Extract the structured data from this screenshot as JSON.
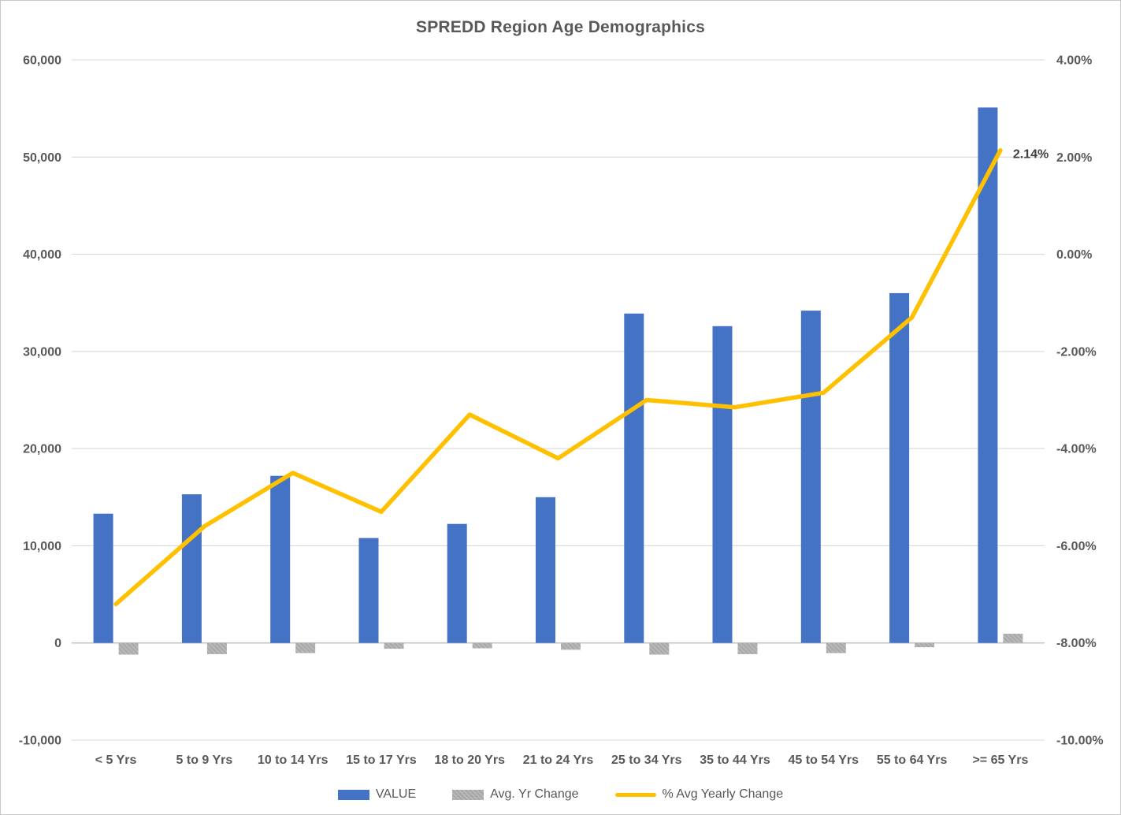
{
  "page": {
    "background": "#ffffff",
    "border_color": "#c8c8c8"
  },
  "chart_data": {
    "type": "combo-bar-line",
    "title": "SPREDD Region Age Demographics",
    "categories": [
      "< 5 Yrs",
      "5 to 9 Yrs",
      "10 to 14 Yrs",
      "15 to 17 Yrs",
      "18 to 20 Yrs",
      "21 to 24 Yrs",
      "25 to 34 Yrs",
      "35 to 44 Yrs",
      "45 to 54 Yrs",
      "55 to 64 Yrs",
      ">= 65 Yrs"
    ],
    "series": [
      {
        "name": "VALUE",
        "type": "bar",
        "axis": "left",
        "color": "#4472C4",
        "values": [
          13300,
          15300,
          17200,
          10800,
          12250,
          15000,
          33900,
          32600,
          34200,
          36000,
          55100
        ]
      },
      {
        "name": "Avg. Yr Change",
        "type": "bar",
        "axis": "left",
        "color": "#A6A6A6",
        "pattern": true,
        "values": [
          -1200,
          -1150,
          -1050,
          -600,
          -550,
          -700,
          -1200,
          -1150,
          -1050,
          -450,
          950
        ]
      },
      {
        "name": "% Avg Yearly Change",
        "type": "line",
        "axis": "right",
        "color": "#FFC000",
        "values": [
          -7.2,
          -5.6,
          -4.5,
          -5.3,
          -3.3,
          -4.2,
          -3.0,
          -3.15,
          -2.85,
          -1.3,
          2.14
        ]
      }
    ],
    "left_axis": {
      "min": -10000,
      "max": 60000,
      "step": 10000,
      "tick_labels": [
        "60,000",
        "50,000",
        "40,000",
        "30,000",
        "20,000",
        "10,000",
        "0",
        "-10,000"
      ]
    },
    "right_axis": {
      "min": -10,
      "max": 4,
      "step": 2,
      "tick_labels": [
        "4.00%",
        "2.00%",
        "0.00%",
        "-2.00%",
        "-4.00%",
        "-6.00%",
        "-8.00%",
        "-10.00%"
      ]
    },
    "data_label": {
      "text": "2.14%",
      "series_index": 2,
      "point_index": 10
    },
    "gridline_color": "#D9D9D9",
    "zero_line_color": "#C6C6C6",
    "axis_label_color": "#595959",
    "legend_position": "bottom"
  },
  "legend": {
    "items": [
      {
        "label": "VALUE",
        "swatch": "bar",
        "color": "#4472C4",
        "pattern": false
      },
      {
        "label": "Avg. Yr Change",
        "swatch": "bar",
        "color": "#A6A6A6",
        "pattern": true
      },
      {
        "label": "% Avg Yearly Change",
        "swatch": "line",
        "color": "#FFC000",
        "pattern": false
      }
    ]
  }
}
